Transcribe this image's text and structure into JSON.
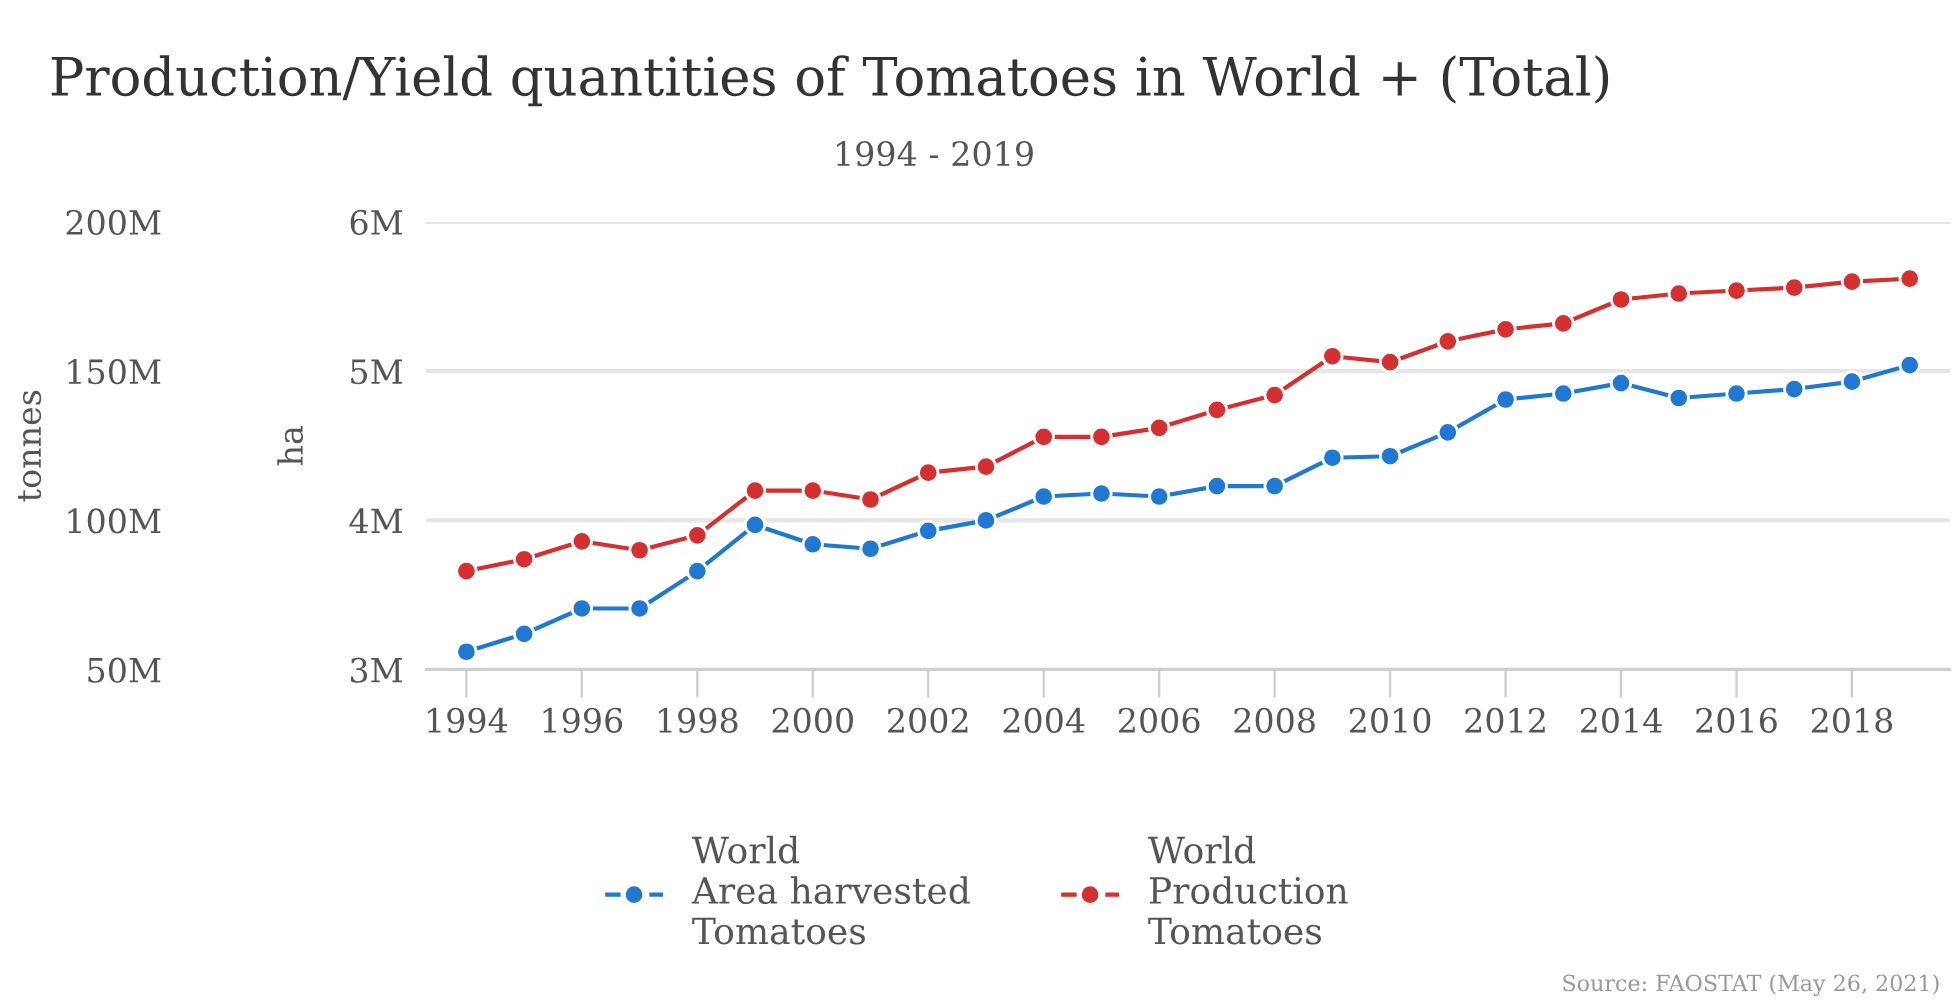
{
  "chart_data": {
    "type": "line",
    "title": "Production/Yield quantities of Tomatoes in World + (Total)",
    "subtitle": "1994 - 2019",
    "ylabel": "tonnes",
    "y2label": "ha",
    "x": [
      1994,
      1995,
      1996,
      1997,
      1998,
      1999,
      2000,
      2001,
      2002,
      2003,
      2004,
      2005,
      2006,
      2007,
      2008,
      2009,
      2010,
      2011,
      2012,
      2013,
      2014,
      2015,
      2016,
      2017,
      2018,
      2019
    ],
    "xlim": [
      1993.3,
      2019.7
    ],
    "xticks": [
      1994,
      1996,
      1998,
      2000,
      2002,
      2004,
      2006,
      2008,
      2010,
      2012,
      2014,
      2016,
      2018
    ],
    "ylim": [
      50,
      200
    ],
    "yticks": [
      {
        "value": 50,
        "label": "50M"
      },
      {
        "value": 100,
        "label": "100M"
      },
      {
        "value": 150,
        "label": "150M"
      },
      {
        "value": 200,
        "label": "200M"
      }
    ],
    "y2lim": [
      3,
      6
    ],
    "y2ticks": [
      {
        "value": 3,
        "label": "3M"
      },
      {
        "value": 4,
        "label": "4M"
      },
      {
        "value": 5,
        "label": "5M"
      },
      {
        "value": 6,
        "label": "6M"
      }
    ],
    "series": [
      {
        "name": "World\nArea harvested\nTomatoes",
        "color": "#1f78d1",
        "axis": "y2",
        "values": [
          3.12,
          3.24,
          3.41,
          3.41,
          3.66,
          3.97,
          3.84,
          3.81,
          3.93,
          4.0,
          4.16,
          4.18,
          4.16,
          4.23,
          4.23,
          4.42,
          4.43,
          4.59,
          4.81,
          4.85,
          4.92,
          4.82,
          4.85,
          4.88,
          4.93,
          5.04
        ]
      },
      {
        "name": "World\nProduction\nTomatoes",
        "color": "#d62f2f",
        "axis": "y",
        "values": [
          83,
          87,
          93,
          90,
          95,
          110,
          110,
          107,
          116,
          118,
          128,
          128,
          131,
          137,
          142,
          155,
          153,
          160,
          164,
          166,
          174,
          176,
          177,
          178,
          180,
          181
        ]
      }
    ],
    "marker": "circle",
    "line_style": "solid",
    "grid": "y",
    "legend": "bottom",
    "annotations": [
      "Source: FAOSTAT (May 26, 2021)"
    ]
  }
}
